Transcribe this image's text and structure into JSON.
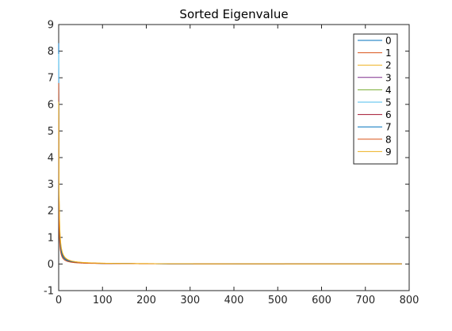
{
  "chart_data": {
    "type": "line",
    "title": "Sorted Eigenvalue",
    "xlabel": "",
    "ylabel": "",
    "xlim": [
      0,
      800
    ],
    "ylim": [
      -1,
      9
    ],
    "x_ticks": [
      0,
      100,
      200,
      300,
      400,
      500,
      600,
      700,
      800
    ],
    "y_ticks": [
      -1,
      0,
      1,
      2,
      3,
      4,
      5,
      6,
      7,
      8,
      9
    ],
    "x_tick_labels": [
      "0",
      "100",
      "200",
      "300",
      "400",
      "500",
      "600",
      "700",
      "800"
    ],
    "y_tick_labels": [
      "-1",
      "0",
      "1",
      "2",
      "3",
      "4",
      "5",
      "6",
      "7",
      "8",
      "9"
    ],
    "grid": false,
    "legend_position": "top-right",
    "n_points": 784,
    "series": [
      {
        "name": "0",
        "color": "#0072BD",
        "start": 8.3,
        "tail_scale": 4.0
      },
      {
        "name": "1",
        "color": "#D95319",
        "start": 6.6,
        "tail_scale": 4.6
      },
      {
        "name": "2",
        "color": "#EDB120",
        "start": 5.8,
        "tail_scale": 5.4
      },
      {
        "name": "3",
        "color": "#7E2F8E",
        "start": 7.4,
        "tail_scale": 4.2
      },
      {
        "name": "4",
        "color": "#77AC30",
        "start": 6.0,
        "tail_scale": 4.4
      },
      {
        "name": "5",
        "color": "#4DBEEE",
        "start": 7.9,
        "tail_scale": 4.1
      },
      {
        "name": "6",
        "color": "#A2142F",
        "start": 6.2,
        "tail_scale": 4.5
      },
      {
        "name": "7",
        "color": "#0072BD",
        "start": 6.4,
        "tail_scale": 4.3
      },
      {
        "name": "8",
        "color": "#D95319",
        "start": 6.8,
        "tail_scale": 3.2
      },
      {
        "name": "9",
        "color": "#EDB120",
        "start": 6.1,
        "tail_scale": 5.8
      }
    ]
  }
}
